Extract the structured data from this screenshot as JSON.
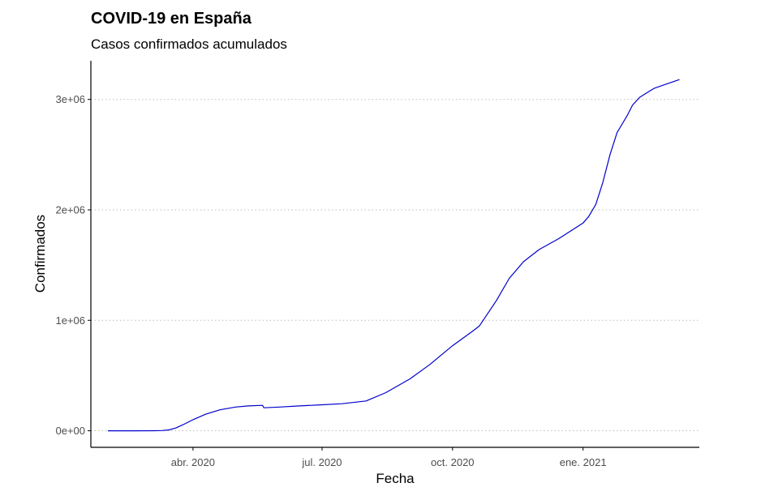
{
  "chart_data": {
    "type": "line",
    "title": "COVID-19 en España",
    "subtitle": "Casos confirmados acumulados",
    "xlabel": "Fecha",
    "ylabel": "Confirmados",
    "x_ticks": [
      {
        "date": "2020-04-01",
        "label": "abr. 2020"
      },
      {
        "date": "2020-07-01",
        "label": "jul. 2020"
      },
      {
        "date": "2020-10-01",
        "label": "oct. 2020"
      },
      {
        "date": "2021-01-01",
        "label": "ene. 2021"
      }
    ],
    "y_ticks": [
      {
        "value": 0,
        "label": "0e+00"
      },
      {
        "value": 1000000,
        "label": "1e+06"
      },
      {
        "value": 2000000,
        "label": "2e+06"
      },
      {
        "value": 3000000,
        "label": "3e+06"
      }
    ],
    "xlim": [
      "2020-01-20",
      "2021-03-24"
    ],
    "ylim": [
      -150000,
      3350000
    ],
    "grid": "horizontal dotted",
    "legend": "none",
    "line_color": "#0000cc",
    "series": [
      {
        "x": [
          "2020-02-01",
          "2020-02-20",
          "2020-03-05",
          "2020-03-10",
          "2020-03-15",
          "2020-03-20",
          "2020-03-25",
          "2020-04-01",
          "2020-04-10",
          "2020-04-20",
          "2020-05-01",
          "2020-05-10",
          "2020-05-20",
          "2020-05-21",
          "2020-06-01",
          "2020-06-15",
          "2020-07-01",
          "2020-07-15",
          "2020-08-01",
          "2020-08-15",
          "2020-09-01",
          "2020-09-15",
          "2020-10-01",
          "2020-10-15",
          "2020-10-20",
          "2020-11-01",
          "2020-11-10",
          "2020-11-20",
          "2020-12-01",
          "2020-12-15",
          "2021-01-01",
          "2021-01-05",
          "2021-01-10",
          "2021-01-15",
          "2021-01-20",
          "2021-01-25",
          "2021-02-01",
          "2021-02-05",
          "2021-02-10",
          "2021-02-15",
          "2021-02-20",
          "2021-03-01",
          "2021-03-10"
        ],
        "y": [
          0,
          0,
          300,
          1700,
          8000,
          25000,
          55000,
          100000,
          150000,
          190000,
          215000,
          225000,
          230000,
          208000,
          215000,
          225000,
          235000,
          245000,
          270000,
          345000,
          470000,
          600000,
          770000,
          900000,
          950000,
          1180000,
          1380000,
          1530000,
          1640000,
          1740000,
          1880000,
          1940000,
          2050000,
          2250000,
          2500000,
          2700000,
          2850000,
          2950000,
          3020000,
          3060000,
          3100000,
          3140000,
          3180000
        ]
      }
    ]
  }
}
